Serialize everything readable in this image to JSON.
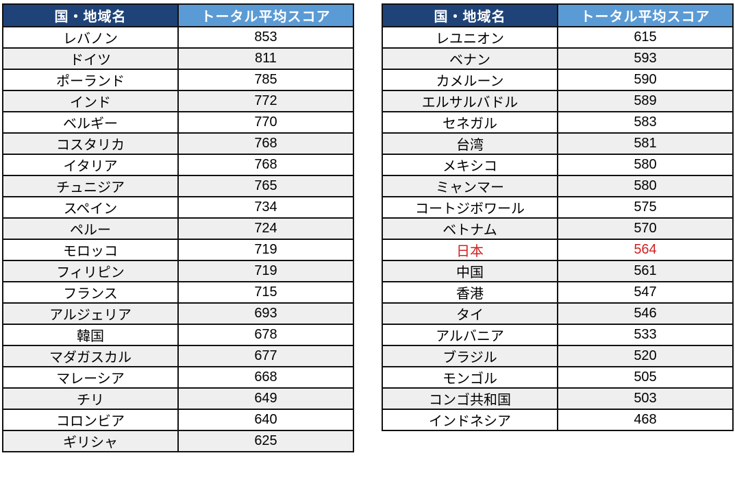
{
  "colors": {
    "header_country_bg": "#1f4378",
    "header_score_bg": "#5b9bd5",
    "row_stripe_bg": "#efefef",
    "highlight_text": "#d01f1f",
    "border": "#111111"
  },
  "chart_data": {
    "type": "table",
    "columns": [
      "国・地域名",
      "トータル平均スコア"
    ],
    "left_table": {
      "rows": [
        [
          "レバノン",
          853
        ],
        [
          "ドイツ",
          811
        ],
        [
          "ポーランド",
          785
        ],
        [
          "インド",
          772
        ],
        [
          "ベルギー",
          770
        ],
        [
          "コスタリカ",
          768
        ],
        [
          "イタリア",
          768
        ],
        [
          "チュニジア",
          765
        ],
        [
          "スペイン",
          734
        ],
        [
          "ペルー",
          724
        ],
        [
          "モロッコ",
          719
        ],
        [
          "フィリピン",
          719
        ],
        [
          "フランス",
          715
        ],
        [
          "アルジェリア",
          693
        ],
        [
          "韓国",
          678
        ],
        [
          "マダガスカル",
          677
        ],
        [
          "マレーシア",
          668
        ],
        [
          "チリ",
          649
        ],
        [
          "コロンビア",
          640
        ],
        [
          "ギリシャ",
          625
        ]
      ]
    },
    "right_table": {
      "rows": [
        [
          "レユニオン",
          615
        ],
        [
          "ベナン",
          593
        ],
        [
          "カメルーン",
          590
        ],
        [
          "エルサルバドル",
          589
        ],
        [
          "セネガル",
          583
        ],
        [
          "台湾",
          581
        ],
        [
          "メキシコ",
          580
        ],
        [
          "ミャンマー",
          580
        ],
        [
          "コートジボワール",
          575
        ],
        [
          "ベトナム",
          570
        ],
        [
          "日本",
          564
        ],
        [
          "中国",
          561
        ],
        [
          "香港",
          547
        ],
        [
          "タイ",
          546
        ],
        [
          "アルバニア",
          533
        ],
        [
          "ブラジル",
          520
        ],
        [
          "モンゴル",
          505
        ],
        [
          "コンゴ共和国",
          503
        ],
        [
          "インドネシア",
          468
        ]
      ]
    },
    "highlighted_row": {
      "country": "日本",
      "score": 564,
      "color": "#d01f1f"
    },
    "layout": {
      "tables": "two side-by-side",
      "row_striping": true,
      "legend": "none"
    }
  }
}
